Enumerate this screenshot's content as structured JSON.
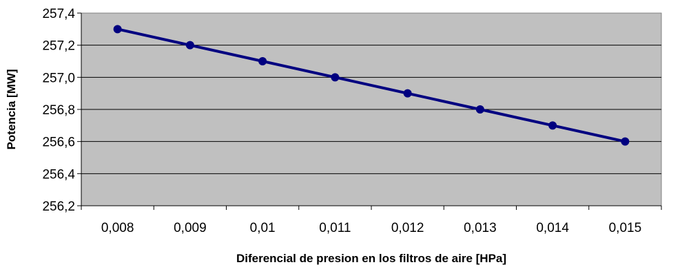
{
  "chart_data": {
    "type": "line",
    "title": "",
    "xlabel": "Diferencial de presion en los filtros de aire [HPa]",
    "ylabel": "Potencia [MW]",
    "categories": [
      "0,008",
      "0,009",
      "0,01",
      "0,011",
      "0,012",
      "0,013",
      "0,014",
      "0,015"
    ],
    "series": [
      {
        "values": [
          257.3,
          257.2,
          257.1,
          257.0,
          256.9,
          256.8,
          256.7,
          256.6
        ]
      }
    ],
    "ylim": [
      256.2,
      257.4
    ],
    "y_ticks": [
      "256,2",
      "256,4",
      "256,6",
      "256,8",
      "257,0",
      "257,2",
      "257,4"
    ],
    "grid": "horizontal",
    "legend": "none",
    "colors": {
      "plot_background": "#c0c0c0",
      "line": "#000080",
      "gridline": "#000000"
    }
  }
}
